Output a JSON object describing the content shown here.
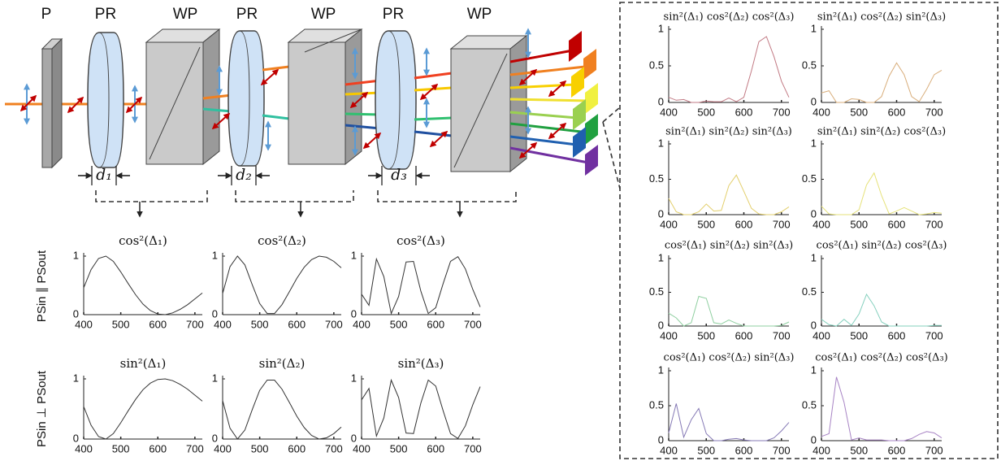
{
  "diagram": {
    "labels": [
      "P",
      "PR",
      "WP",
      "PR",
      "WP",
      "PR",
      "WP"
    ],
    "thicknesses": [
      "d₁",
      "d₂",
      "d₃"
    ],
    "row_labels": [
      "PSin ∥ PSout",
      "PSin ⊥ PSout"
    ]
  },
  "chart_data": [
    {
      "type": "line",
      "title": "cos²(Δ₁)",
      "color": "#333333",
      "x": [
        400,
        420,
        440,
        460,
        480,
        500,
        520,
        540,
        560,
        580,
        600,
        620,
        640,
        660,
        680,
        700,
        720
      ],
      "values": [
        0.46,
        0.77,
        0.96,
        1.0,
        0.91,
        0.73,
        0.53,
        0.34,
        0.18,
        0.07,
        0.01,
        0,
        0.03,
        0.09,
        0.17,
        0.27,
        0.37
      ],
      "xlim": [
        400,
        720
      ],
      "xticks": [
        400,
        500,
        600,
        700
      ],
      "ylim": [
        0,
        1
      ],
      "yticks": [
        0,
        1
      ]
    },
    {
      "type": "line",
      "title": "cos²(Δ₂)",
      "color": "#333333",
      "x": [
        400,
        420,
        440,
        460,
        480,
        500,
        520,
        540,
        560,
        580,
        600,
        620,
        640,
        660,
        680,
        700,
        720
      ],
      "values": [
        0.36,
        0.82,
        1,
        0.85,
        0.51,
        0.19,
        0.02,
        0.02,
        0.17,
        0.39,
        0.62,
        0.81,
        0.94,
        1,
        0.98,
        0.91,
        0.8
      ],
      "xlim": [
        400,
        720
      ],
      "xticks": [
        400,
        500,
        600,
        700
      ],
      "ylim": [
        0,
        1
      ],
      "yticks": [
        0,
        1
      ]
    },
    {
      "type": "line",
      "title": "cos²(Δ₃)",
      "color": "#333333",
      "x": [
        400,
        420,
        440,
        460,
        480,
        500,
        520,
        540,
        560,
        580,
        600,
        620,
        640,
        660,
        680,
        700,
        720
      ],
      "values": [
        0.35,
        0.16,
        0.95,
        0.65,
        0.02,
        0.31,
        0.9,
        0.91,
        0.4,
        0.02,
        0.12,
        0.53,
        0.91,
        0.99,
        0.78,
        0.43,
        0.13
      ],
      "xlim": [
        400,
        720
      ],
      "xticks": [
        400,
        500,
        600,
        700
      ],
      "ylim": [
        0,
        1
      ],
      "yticks": [
        0,
        1
      ]
    },
    {
      "type": "line",
      "title": "sin²(Δ₁)",
      "color": "#333333",
      "x": [
        400,
        420,
        440,
        460,
        480,
        500,
        520,
        540,
        560,
        580,
        600,
        620,
        640,
        660,
        680,
        700,
        720
      ],
      "values": [
        0.54,
        0.23,
        0.04,
        0,
        0.09,
        0.27,
        0.47,
        0.66,
        0.82,
        0.93,
        0.99,
        1,
        0.97,
        0.91,
        0.83,
        0.73,
        0.63
      ],
      "xlim": [
        400,
        720
      ],
      "xticks": [
        400,
        500,
        600,
        700
      ],
      "ylim": [
        0,
        1
      ],
      "yticks": [
        0,
        1
      ]
    },
    {
      "type": "line",
      "title": "sin²(Δ₂)",
      "color": "#333333",
      "x": [
        400,
        420,
        440,
        460,
        480,
        500,
        520,
        540,
        560,
        580,
        600,
        620,
        640,
        660,
        680,
        700,
        720
      ],
      "values": [
        0.64,
        0.18,
        0,
        0.15,
        0.49,
        0.81,
        0.98,
        0.98,
        0.83,
        0.61,
        0.38,
        0.19,
        0.06,
        0,
        0.02,
        0.09,
        0.2
      ],
      "xlim": [
        400,
        720
      ],
      "xticks": [
        400,
        500,
        600,
        700
      ],
      "ylim": [
        0,
        1
      ],
      "yticks": [
        0,
        1
      ]
    },
    {
      "type": "line",
      "title": "sin²(Δ₃)",
      "color": "#333333",
      "x": [
        400,
        420,
        440,
        460,
        480,
        500,
        520,
        540,
        560,
        580,
        600,
        620,
        640,
        660,
        680,
        700,
        720
      ],
      "values": [
        0.65,
        0.84,
        0.05,
        0.35,
        0.98,
        0.69,
        0.1,
        0.09,
        0.6,
        0.98,
        0.88,
        0.47,
        0.09,
        0.01,
        0.22,
        0.57,
        0.87
      ],
      "xlim": [
        400,
        720
      ],
      "xticks": [
        400,
        500,
        600,
        700
      ],
      "ylim": [
        0,
        1
      ],
      "yticks": [
        0,
        1
      ]
    },
    {
      "type": "line",
      "title": "sin²(Δ₁) cos²(Δ₂) cos²(Δ₃)",
      "color": "#c27a84",
      "x": [
        400,
        420,
        440,
        460,
        480,
        500,
        520,
        540,
        560,
        580,
        600,
        620,
        640,
        660,
        680,
        700,
        720
      ],
      "values": [
        0.07,
        0.03,
        0.04,
        0,
        0,
        0.02,
        0.01,
        0.01,
        0.06,
        0.01,
        0.07,
        0.43,
        0.83,
        0.9,
        0.63,
        0.29,
        0.07
      ],
      "xlim": [
        400,
        720
      ],
      "xticks": [
        400,
        500,
        600,
        700
      ],
      "ylim": [
        0,
        1
      ],
      "yticks": [
        0,
        0.5,
        1
      ]
    },
    {
      "type": "line",
      "title": "sin²(Δ₁) cos²(Δ₂) sin²(Δ₃)",
      "color": "#d8ad7a",
      "x": [
        400,
        420,
        440,
        460,
        480,
        500,
        520,
        540,
        560,
        580,
        600,
        620,
        640,
        660,
        680,
        700,
        720
      ],
      "values": [
        0.13,
        0.16,
        0,
        0,
        0.05,
        0.04,
        0,
        0,
        0.08,
        0.36,
        0.54,
        0.38,
        0.08,
        0.01,
        0.18,
        0.38,
        0.44
      ],
      "xlim": [
        400,
        720
      ],
      "xticks": [
        400,
        500,
        600,
        700
      ],
      "ylim": [
        0,
        1
      ],
      "yticks": [
        0,
        0.5,
        1
      ]
    },
    {
      "type": "line",
      "title": "sin²(Δ₁) sin²(Δ₂) sin²(Δ₃)",
      "color": "#e3cf6c",
      "x": [
        400,
        420,
        440,
        460,
        480,
        500,
        520,
        540,
        560,
        580,
        600,
        620,
        640,
        660,
        680,
        700,
        720
      ],
      "values": [
        0.23,
        0.04,
        0,
        0,
        0.04,
        0.15,
        0.05,
        0.06,
        0.41,
        0.56,
        0.33,
        0.09,
        0.01,
        0,
        0,
        0.04,
        0.11
      ],
      "xlim": [
        400,
        720
      ],
      "xticks": [
        400,
        500,
        600,
        700
      ],
      "ylim": [
        0,
        1
      ],
      "yticks": [
        0,
        0.5,
        1
      ]
    },
    {
      "type": "line",
      "title": "sin²(Δ₁) sin²(Δ₂) cos²(Δ₃)",
      "color": "#e6e27a",
      "x": [
        400,
        420,
        440,
        460,
        480,
        500,
        520,
        540,
        560,
        580,
        600,
        620,
        640,
        660,
        680,
        700,
        720
      ],
      "values": [
        0.12,
        0.01,
        0,
        0,
        0,
        0.07,
        0.42,
        0.59,
        0.27,
        0.01,
        0.05,
        0.1,
        0.05,
        0,
        0.01,
        0.03,
        0.02
      ],
      "xlim": [
        400,
        720
      ],
      "xticks": [
        400,
        500,
        600,
        700
      ],
      "ylim": [
        0,
        1
      ],
      "yticks": [
        0,
        0.5,
        1
      ]
    },
    {
      "type": "line",
      "title": "cos²(Δ₁) sin²(Δ₂) sin²(Δ₃)",
      "color": "#8fcfa0",
      "x": [
        400,
        420,
        440,
        460,
        480,
        500,
        520,
        540,
        560,
        580,
        600,
        620,
        640,
        660,
        680,
        700,
        720
      ],
      "values": [
        0.19,
        0.12,
        0,
        0.05,
        0.44,
        0.41,
        0.05,
        0.03,
        0.09,
        0.04,
        0,
        0,
        0,
        0,
        0,
        0.01,
        0.06
      ],
      "xlim": [
        400,
        720
      ],
      "xticks": [
        400,
        500,
        600,
        700
      ],
      "ylim": [
        0,
        1
      ],
      "yticks": [
        0,
        0.5,
        1
      ]
    },
    {
      "type": "line",
      "title": "cos²(Δ₁) sin²(Δ₂) cos²(Δ₃)",
      "color": "#86d0be",
      "x": [
        400,
        420,
        440,
        460,
        480,
        500,
        520,
        540,
        560,
        580,
        600,
        620,
        640,
        660,
        680,
        700,
        720
      ],
      "values": [
        0.1,
        0.02,
        0,
        0.1,
        0.01,
        0.18,
        0.47,
        0.3,
        0.06,
        0,
        0,
        0,
        0,
        0,
        0,
        0.01,
        0.01
      ],
      "xlim": [
        400,
        720
      ],
      "xticks": [
        400,
        500,
        600,
        700
      ],
      "ylim": [
        0,
        1
      ],
      "yticks": [
        0,
        0.5,
        1
      ]
    },
    {
      "type": "line",
      "title": "cos²(Δ₁) cos²(Δ₂) sin²(Δ₃)",
      "color": "#8579b5",
      "x": [
        400,
        420,
        440,
        460,
        480,
        500,
        520,
        540,
        560,
        580,
        600,
        620,
        640,
        660,
        680,
        700,
        720
      ],
      "values": [
        0.11,
        0.53,
        0.05,
        0.3,
        0.46,
        0.1,
        0,
        0,
        0.02,
        0.03,
        0.01,
        0,
        0,
        0,
        0.04,
        0.14,
        0.26
      ],
      "xlim": [
        400,
        720
      ],
      "xticks": [
        400,
        500,
        600,
        700
      ],
      "ylim": [
        0,
        1
      ],
      "yticks": [
        0,
        0.5,
        1
      ]
    },
    {
      "type": "line",
      "title": "cos²(Δ₁) cos²(Δ₂) cos²(Δ₃)",
      "color": "#a783c4",
      "x": [
        400,
        420,
        440,
        460,
        480,
        500,
        520,
        540,
        560,
        580,
        600,
        620,
        640,
        660,
        680,
        700,
        720
      ],
      "values": [
        0.06,
        0.1,
        0.91,
        0.55,
        0.01,
        0.04,
        0.01,
        0.01,
        0.01,
        0,
        0,
        0,
        0.03,
        0.09,
        0.13,
        0.11,
        0.04
      ],
      "xlim": [
        400,
        720
      ],
      "xticks": [
        400,
        500,
        600,
        700
      ],
      "ylim": [
        0,
        1
      ],
      "yticks": [
        0,
        0.5,
        1
      ]
    }
  ]
}
